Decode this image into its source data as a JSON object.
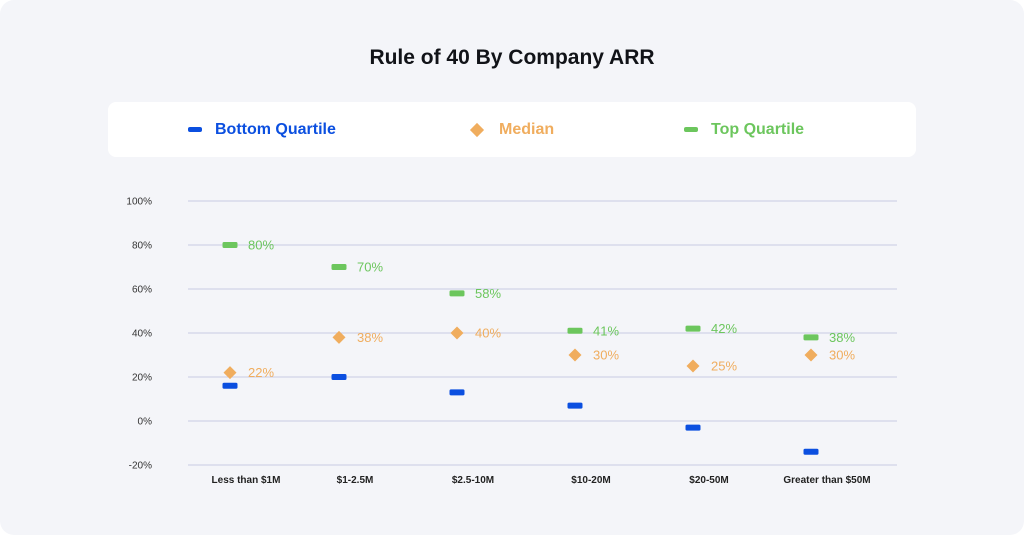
{
  "title": "Rule of 40 By Company ARR",
  "legend": {
    "bottom": "Bottom Quartile",
    "median": "Median",
    "top": "Top Quartile"
  },
  "colors": {
    "bottom": "#0b4fe0",
    "median": "#f0ad5e",
    "top": "#6cc65d",
    "grid": "#c7cbe3",
    "axis_text": "#333333",
    "background": "#f4f5f9"
  },
  "chart_data": {
    "type": "scatter",
    "title": "Rule of 40 By Company ARR",
    "categories": [
      "Less than $1M",
      "$1-2.5M",
      "$2.5-10M",
      "$10-20M",
      "$20-50M",
      "Greater than $50M"
    ],
    "y_ticks": [
      "100%",
      "80%",
      "60%",
      "40%",
      "20%",
      "0%",
      "-20%"
    ],
    "ylim": [
      -20,
      100
    ],
    "grid": true,
    "legend_position": "top",
    "series": [
      {
        "name": "Bottom Quartile",
        "marker": "dash",
        "values": [
          16,
          20,
          13,
          7,
          -3,
          -14
        ],
        "labels": [
          "",
          "",
          "",
          "",
          "",
          ""
        ]
      },
      {
        "name": "Median",
        "marker": "diamond",
        "values": [
          22,
          38,
          40,
          30,
          25,
          30
        ],
        "labels": [
          "22%",
          "38%",
          "40%",
          "30%",
          "25%",
          "30%"
        ]
      },
      {
        "name": "Top Quartile",
        "marker": "dash",
        "values": [
          80,
          70,
          58,
          41,
          42,
          38
        ],
        "labels": [
          "80%",
          "70%",
          "58%",
          "41%",
          "42%",
          "38%"
        ]
      }
    ]
  }
}
